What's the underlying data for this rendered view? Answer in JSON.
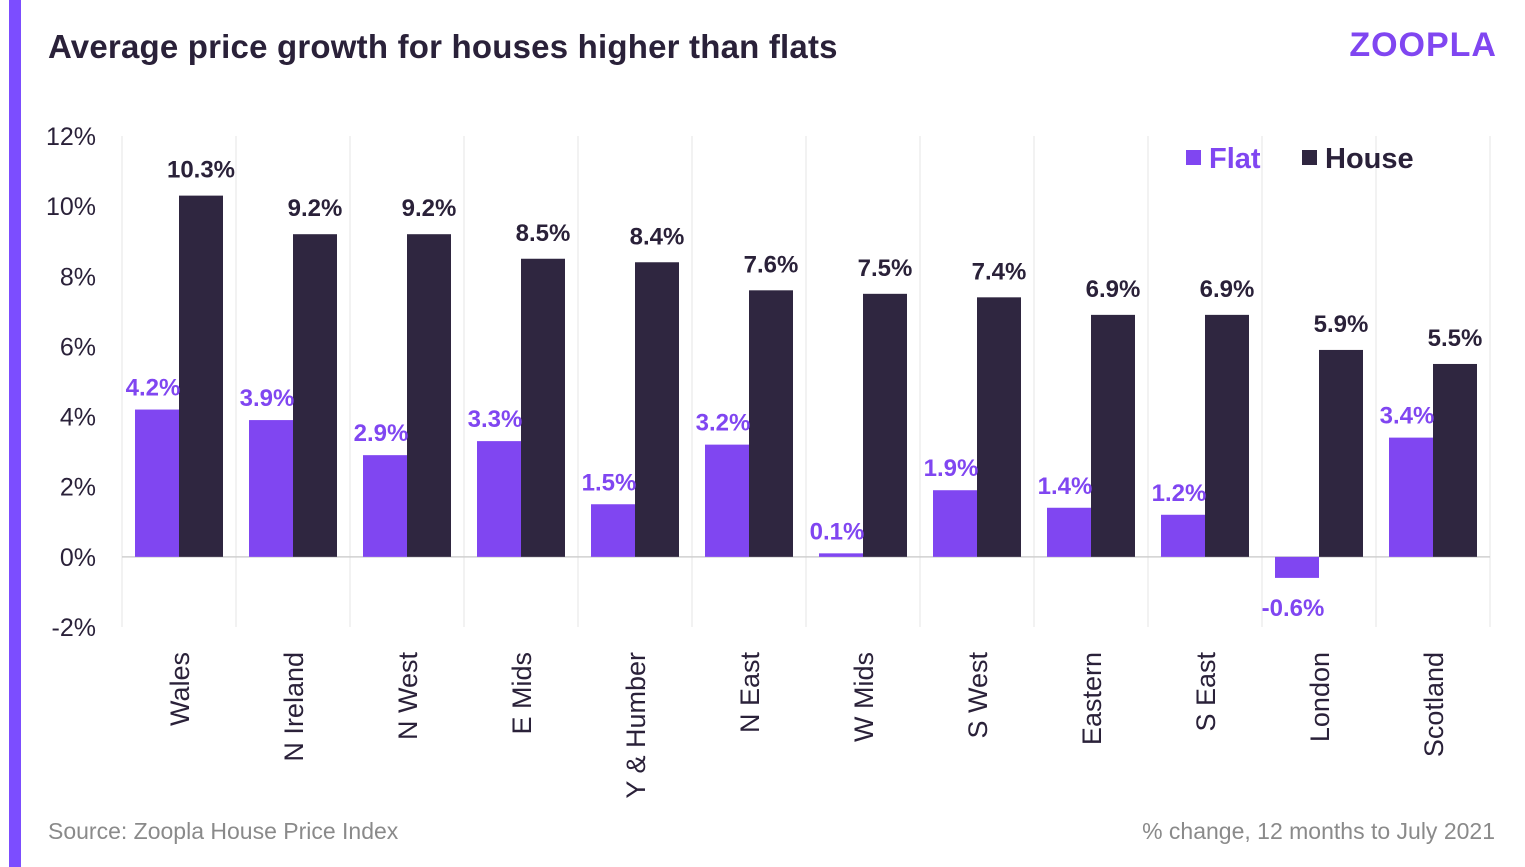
{
  "header": {
    "title": "Average price growth for houses higher than flats",
    "logo_text": "ZOOPLA"
  },
  "footer": {
    "source": "Source: Zoopla House Price Index",
    "note": "% change, 12 months to July 2021"
  },
  "colors": {
    "flat": "#8046f1",
    "house": "#2f2640",
    "accent": "#7c4dff"
  },
  "chart_data": {
    "type": "bar",
    "title": "Average price growth for houses higher than flats",
    "xlabel": "",
    "ylabel": "",
    "categories": [
      "Wales",
      "N Ireland",
      "N West",
      "E Mids",
      "Y & Humber",
      "N East",
      "W Mids",
      "S West",
      "Eastern",
      "S East",
      "London",
      "Scotland"
    ],
    "series": [
      {
        "name": "Flat",
        "values": [
          4.2,
          3.9,
          2.9,
          3.3,
          1.5,
          3.2,
          0.1,
          1.9,
          1.4,
          1.2,
          -0.6,
          3.4
        ]
      },
      {
        "name": "House",
        "values": [
          10.3,
          9.2,
          9.2,
          8.5,
          8.4,
          7.6,
          7.5,
          7.4,
          6.9,
          6.9,
          5.9,
          5.5
        ]
      }
    ],
    "ylim": [
      -2,
      12
    ],
    "yticks": [
      "-2%",
      "0%",
      "2%",
      "4%",
      "6%",
      "8%",
      "10%",
      "12%"
    ],
    "ytick_values": [
      -2,
      0,
      2,
      4,
      6,
      8,
      10,
      12
    ],
    "value_suffix": "%",
    "grid": "vertical",
    "legend": "top-right"
  }
}
